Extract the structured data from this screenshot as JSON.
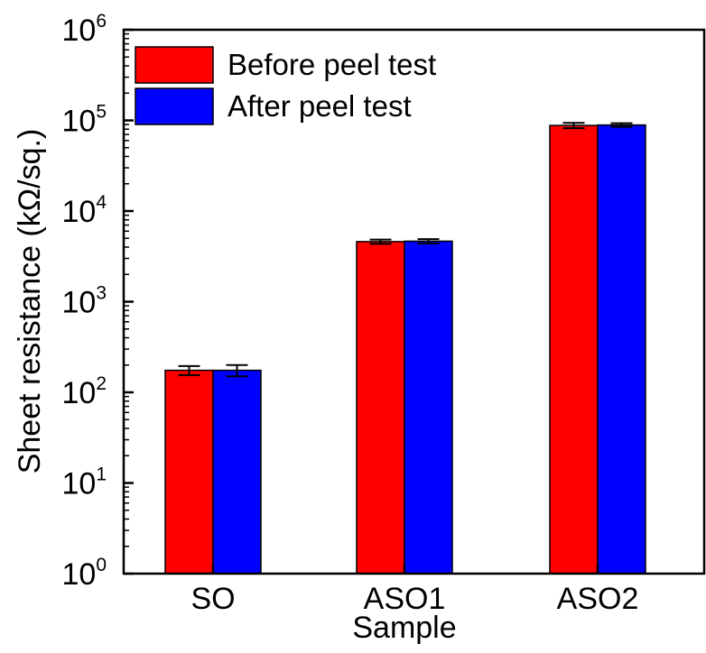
{
  "chart_data": {
    "type": "bar",
    "title": "",
    "xlabel": "Sample",
    "ylabel": "Sheet resistance (kΩ/sq.)",
    "yscale": "log",
    "ylim": [
      1,
      1000000
    ],
    "ytick_base": "10",
    "ytick_exponents": [
      "0",
      "1",
      "2",
      "3",
      "4",
      "5",
      "6"
    ],
    "categories": [
      "SO",
      "ASO1",
      "ASO2"
    ],
    "series": [
      {
        "name": "Before peel test",
        "color": "#ff0000",
        "values": [
          175,
          4600,
          88000
        ],
        "errors": [
          20,
          250,
          6000
        ]
      },
      {
        "name": "After peel test",
        "color": "#0000ff",
        "values": [
          175,
          4650,
          89000
        ],
        "errors": [
          25,
          250,
          4000
        ]
      }
    ],
    "legend_position": "top-left"
  }
}
